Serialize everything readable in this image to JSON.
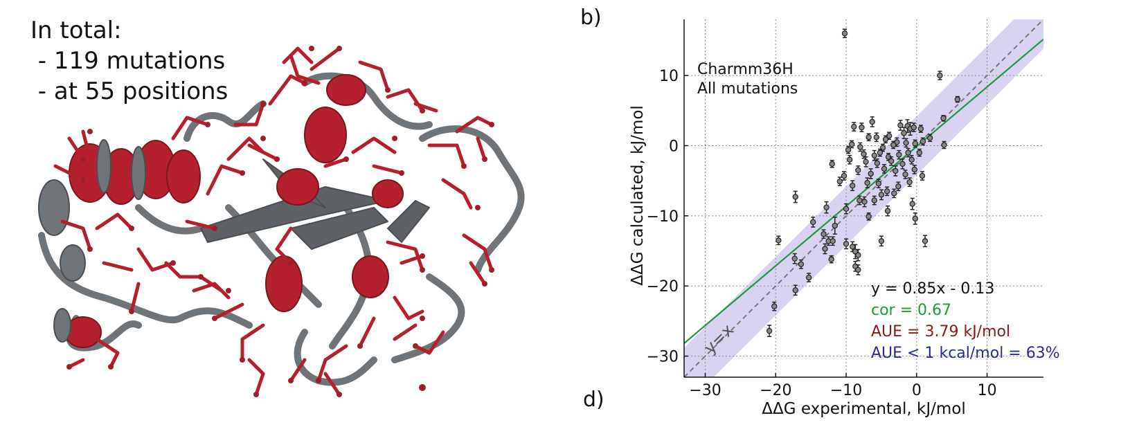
{
  "info": {
    "line1": "In total:",
    "line2": " - 119 mutations",
    "line3": " - at 55 positions"
  },
  "panel_labels": {
    "b": "b)",
    "d": "d)"
  },
  "colors": {
    "helix_red": "#b5202e",
    "coil_gray": "#6f7479",
    "fit_green": "#1d9a3c",
    "band_lavender": "#d9d3f1",
    "aue_red": "#8b1a1a",
    "aue_blue": "#2b2b9e",
    "point_gray": "#888888"
  },
  "chart_data": {
    "type": "scatter",
    "xlabel": "ΔΔG experimental, kJ/mol",
    "ylabel": "ΔΔG calculated, kJ/mol",
    "xlim": [
      -33,
      18
    ],
    "ylim": [
      -33,
      18
    ],
    "xticks": [
      -30,
      -20,
      -10,
      0,
      10
    ],
    "yticks": [
      -30,
      -20,
      -10,
      0,
      10
    ],
    "grid": true,
    "legend_text": [
      "Charmm36H",
      "All mutations"
    ],
    "diagonal_label": "y=x",
    "band_halfwidth": 4.184,
    "fit": {
      "slope": 0.85,
      "intercept": -0.13
    },
    "annotations": {
      "equation": "y = 0.85x - 0.13",
      "cor": "cor = 0.67",
      "aue": "AUE = 3.79 kJ/mol",
      "aue_kcal": "AUE < 1 kcal/mol = 63%"
    },
    "points": [
      {
        "x": -10.2,
        "y": 16.0,
        "e": 0.6
      },
      {
        "x": 3.3,
        "y": 10.0,
        "e": 0.6
      },
      {
        "x": 5.8,
        "y": 6.6,
        "e": 0.4
      },
      {
        "x": 3.8,
        "y": 3.9,
        "e": 0.4
      },
      {
        "x": -6.3,
        "y": 3.4,
        "e": 0.7
      },
      {
        "x": -8.9,
        "y": 2.7,
        "e": 0.6
      },
      {
        "x": -7.8,
        "y": 2.6,
        "e": 0.6
      },
      {
        "x": -2.3,
        "y": 2.9,
        "e": 0.7
      },
      {
        "x": -1.3,
        "y": 2.8,
        "e": 0.9
      },
      {
        "x": -0.9,
        "y": 2.4,
        "e": 0.9
      },
      {
        "x": -0.4,
        "y": 2.6,
        "e": 0.6
      },
      {
        "x": 0.6,
        "y": 2.4,
        "e": 0.5
      },
      {
        "x": -1.8,
        "y": 1.8,
        "e": 0.8
      },
      {
        "x": -3.9,
        "y": 1.4,
        "e": 0.5
      },
      {
        "x": -6.8,
        "y": 1.2,
        "e": 0.5
      },
      {
        "x": -5.7,
        "y": 1.2,
        "e": 0.6
      },
      {
        "x": -4.4,
        "y": 0.9,
        "e": 0.5
      },
      {
        "x": -2.8,
        "y": 0.5,
        "e": 0.6
      },
      {
        "x": 1.9,
        "y": 1.1,
        "e": 0.5
      },
      {
        "x": 3.9,
        "y": 0.1,
        "e": 0.5
      },
      {
        "x": -9.2,
        "y": 0.2,
        "e": 0.5
      },
      {
        "x": -8.0,
        "y": -0.2,
        "e": 0.6
      },
      {
        "x": -4.8,
        "y": -0.3,
        "e": 0.5
      },
      {
        "x": -3.3,
        "y": 0.1,
        "e": 0.5
      },
      {
        "x": -1.5,
        "y": 0.4,
        "e": 0.6
      },
      {
        "x": -0.2,
        "y": 0.3,
        "e": 0.5
      },
      {
        "x": 0.9,
        "y": 0.6,
        "e": 0.5
      },
      {
        "x": -9.7,
        "y": -0.6,
        "e": 0.5
      },
      {
        "x": -7.5,
        "y": -1.2,
        "e": 0.6
      },
      {
        "x": -6.0,
        "y": -1.4,
        "e": 0.7
      },
      {
        "x": -5.2,
        "y": -1.0,
        "e": 0.5
      },
      {
        "x": -4.0,
        "y": -1.6,
        "e": 0.5
      },
      {
        "x": -2.5,
        "y": -1.3,
        "e": 0.6
      },
      {
        "x": -1.2,
        "y": -1.0,
        "e": 0.6
      },
      {
        "x": 0.4,
        "y": -1.0,
        "e": 0.5
      },
      {
        "x": -12.0,
        "y": -2.6,
        "e": 0.5
      },
      {
        "x": -9.5,
        "y": -2.0,
        "e": 0.6
      },
      {
        "x": -7.2,
        "y": -2.3,
        "e": 0.7
      },
      {
        "x": -5.6,
        "y": -2.5,
        "e": 0.6
      },
      {
        "x": -3.6,
        "y": -2.2,
        "e": 0.6
      },
      {
        "x": -2.0,
        "y": -2.6,
        "e": 0.7
      },
      {
        "x": -0.7,
        "y": -2.0,
        "e": 0.6
      },
      {
        "x": -10.3,
        "y": -4.3,
        "e": 0.6
      },
      {
        "x": -8.3,
        "y": -3.5,
        "e": 0.6
      },
      {
        "x": -6.5,
        "y": -4.0,
        "e": 0.7
      },
      {
        "x": -4.6,
        "y": -3.3,
        "e": 0.6
      },
      {
        "x": -3.0,
        "y": -3.6,
        "e": 0.7
      },
      {
        "x": -1.6,
        "y": -4.1,
        "e": 0.6
      },
      {
        "x": -0.3,
        "y": -3.4,
        "e": 0.6
      },
      {
        "x": 0.8,
        "y": -4.3,
        "e": 0.6
      },
      {
        "x": -10.9,
        "y": -5.1,
        "e": 0.6
      },
      {
        "x": -9.1,
        "y": -5.7,
        "e": 0.7
      },
      {
        "x": -7.0,
        "y": -5.3,
        "e": 0.7
      },
      {
        "x": -5.4,
        "y": -5.4,
        "e": 0.6
      },
      {
        "x": -4.2,
        "y": -6.5,
        "e": 0.6
      },
      {
        "x": -2.6,
        "y": -5.8,
        "e": 0.6
      },
      {
        "x": -1.0,
        "y": -5.2,
        "e": 0.6
      },
      {
        "x": -17.2,
        "y": -7.3,
        "e": 0.8
      },
      {
        "x": -5.0,
        "y": -7.0,
        "e": 0.7
      },
      {
        "x": -3.2,
        "y": -6.8,
        "e": 0.6
      },
      {
        "x": -8.1,
        "y": -7.8,
        "e": 0.6
      },
      {
        "x": -7.4,
        "y": -8.0,
        "e": 0.7
      },
      {
        "x": -6.0,
        "y": -7.8,
        "e": 0.6
      },
      {
        "x": -0.6,
        "y": -8.3,
        "e": 0.8
      },
      {
        "x": -12.8,
        "y": -8.8,
        "e": 0.8
      },
      {
        "x": -10.0,
        "y": -9.0,
        "e": 0.7
      },
      {
        "x": -4.1,
        "y": -9.3,
        "e": 0.7
      },
      {
        "x": -6.8,
        "y": -10.1,
        "e": 0.5
      },
      {
        "x": -0.2,
        "y": -10.4,
        "e": 0.8
      },
      {
        "x": -14.7,
        "y": -10.9,
        "e": 0.7
      },
      {
        "x": -11.6,
        "y": -11.4,
        "e": 1.2
      },
      {
        "x": -13.2,
        "y": -12.6,
        "e": 0.6
      },
      {
        "x": -12.5,
        "y": -13.6,
        "e": 0.6
      },
      {
        "x": -11.9,
        "y": -13.6,
        "e": 0.6
      },
      {
        "x": -19.6,
        "y": -13.5,
        "e": 0.6
      },
      {
        "x": -5.0,
        "y": -13.6,
        "e": 0.7
      },
      {
        "x": -10.0,
        "y": -14.0,
        "e": 0.7
      },
      {
        "x": 1.2,
        "y": -13.6,
        "e": 0.8
      },
      {
        "x": -13.0,
        "y": -14.7,
        "e": 0.7
      },
      {
        "x": -9.1,
        "y": -14.4,
        "e": 0.7
      },
      {
        "x": -8.7,
        "y": -15.1,
        "e": 1.0
      },
      {
        "x": -8.3,
        "y": -15.6,
        "e": 0.8
      },
      {
        "x": -12.1,
        "y": -16.2,
        "e": 0.5
      },
      {
        "x": -17.3,
        "y": -16.1,
        "e": 0.7
      },
      {
        "x": -16.4,
        "y": -16.9,
        "e": 0.6
      },
      {
        "x": -8.7,
        "y": -17.2,
        "e": 0.7
      },
      {
        "x": -8.3,
        "y": -17.7,
        "e": 0.7
      },
      {
        "x": -15.3,
        "y": -18.8,
        "e": 0.6
      },
      {
        "x": -17.2,
        "y": -20.6,
        "e": 0.7
      },
      {
        "x": -20.2,
        "y": -22.9,
        "e": 0.6
      },
      {
        "x": -20.9,
        "y": -26.4,
        "e": 0.8
      }
    ]
  }
}
